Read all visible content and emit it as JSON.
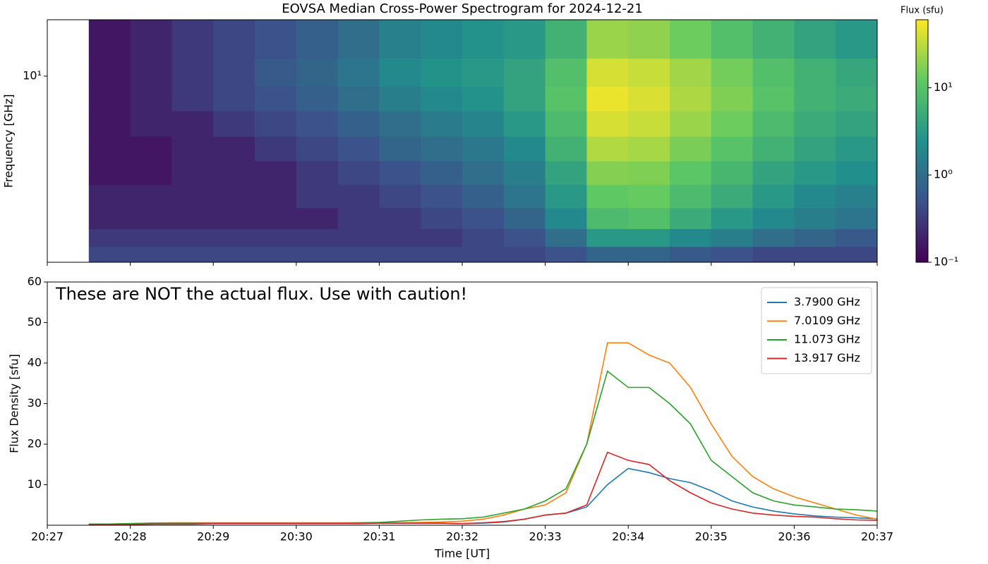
{
  "chart_data": [
    {
      "type": "heatmap",
      "title": "EOVSA Median Cross-Power Spectrogram for 2024-12-21",
      "y_label": "Frequency [GHz]",
      "yscale": "log",
      "xlim": [
        1227,
        1237
      ],
      "xticks": [
        1227,
        1228,
        1229,
        1230,
        1231,
        1232,
        1233,
        1234,
        1235,
        1236,
        1237
      ],
      "ylim": [
        1.49,
        17.8
      ],
      "yticks": [
        {
          "value": 10,
          "label": "10¹"
        }
      ],
      "x_bins": [
        1227.5,
        1228,
        1228.5,
        1229,
        1229.5,
        1230,
        1230.5,
        1231,
        1231.5,
        1232,
        1232.5,
        1233,
        1233.5,
        1234,
        1234.5,
        1235,
        1235.5,
        1236,
        1236.5,
        1237
      ],
      "y_bins": [
        1.49,
        1.75,
        2.1,
        2.6,
        3.3,
        4.2,
        5.4,
        7,
        9,
        12,
        17.8
      ],
      "values": [
        [
          0.4,
          0.4,
          0.4,
          0.4,
          0.4,
          0.4,
          0.4,
          0.4,
          0.4,
          0.4,
          0.4,
          0.5,
          0.8,
          0.8,
          0.6,
          0.5,
          0.4,
          0.4,
          0.4
        ],
        [
          0.3,
          0.3,
          0.3,
          0.3,
          0.3,
          0.3,
          0.3,
          0.3,
          0.3,
          0.4,
          0.5,
          1,
          3,
          3,
          2,
          1.5,
          1,
          0.8,
          0.6
        ],
        [
          0.2,
          0.2,
          0.2,
          0.2,
          0.2,
          0.2,
          0.3,
          0.3,
          0.4,
          0.5,
          0.8,
          2,
          8,
          9,
          5,
          3,
          2,
          1.5,
          1.2
        ],
        [
          0.2,
          0.2,
          0.2,
          0.2,
          0.2,
          0.3,
          0.3,
          0.4,
          0.5,
          0.7,
          1.2,
          3,
          12,
          13,
          8,
          5,
          3,
          2,
          1.6
        ],
        [
          0.15,
          0.15,
          0.2,
          0.2,
          0.2,
          0.3,
          0.4,
          0.5,
          0.7,
          1,
          1.5,
          4,
          18,
          17,
          11,
          7,
          4,
          3,
          2.4
        ],
        [
          0.15,
          0.15,
          0.2,
          0.2,
          0.3,
          0.4,
          0.5,
          0.8,
          1,
          1.3,
          2,
          6,
          28,
          25,
          16,
          10,
          6,
          4,
          3
        ],
        [
          0.15,
          0.2,
          0.2,
          0.3,
          0.4,
          0.5,
          0.7,
          1,
          1.4,
          1.8,
          3,
          8,
          40,
          35,
          22,
          14,
          8,
          5,
          4
        ],
        [
          0.15,
          0.2,
          0.3,
          0.4,
          0.5,
          0.7,
          1,
          1.5,
          2,
          2.5,
          4,
          10,
          50,
          42,
          27,
          17,
          10,
          6,
          5
        ],
        [
          0.15,
          0.2,
          0.3,
          0.4,
          0.6,
          0.8,
          1.2,
          2,
          2.6,
          3,
          4,
          9,
          40,
          35,
          24,
          15,
          9,
          6,
          4.5
        ],
        [
          0.15,
          0.2,
          0.3,
          0.4,
          0.5,
          0.7,
          1,
          1.6,
          2,
          2.5,
          3,
          6,
          22,
          20,
          14,
          9,
          6,
          4,
          3
        ]
      ],
      "colorbar": {
        "label": "Flux (sfu)",
        "colormap": "viridis",
        "log": true,
        "lim": [
          0.1,
          60
        ],
        "ticks": [
          {
            "value": 0.1,
            "label": "10⁻¹"
          },
          {
            "value": 1,
            "label": "10⁰"
          },
          {
            "value": 10,
            "label": "10¹"
          }
        ]
      }
    },
    {
      "type": "line",
      "annotation": "These are NOT the actual flux. Use with caution!",
      "x_label": "Time [UT]",
      "y_label": "Flux Density [sfu]",
      "xlim": [
        1227,
        1237
      ],
      "xticks": [
        {
          "value": 1227,
          "label": "20:27"
        },
        {
          "value": 1228,
          "label": "20:28"
        },
        {
          "value": 1229,
          "label": "20:29"
        },
        {
          "value": 1230,
          "label": "20:30"
        },
        {
          "value": 1231,
          "label": "20:31"
        },
        {
          "value": 1232,
          "label": "20:32"
        },
        {
          "value": 1233,
          "label": "20:33"
        },
        {
          "value": 1234,
          "label": "20:34"
        },
        {
          "value": 1235,
          "label": "20:35"
        },
        {
          "value": 1236,
          "label": "20:36"
        },
        {
          "value": 1237,
          "label": "20:37"
        }
      ],
      "ylim": [
        0,
        60
      ],
      "yticks": [
        10,
        20,
        30,
        40,
        50,
        60
      ],
      "legend": "upper right",
      "x": [
        1227.5,
        1227.75,
        1228,
        1228.25,
        1228.5,
        1228.75,
        1229,
        1229.25,
        1229.5,
        1229.75,
        1230,
        1230.25,
        1230.5,
        1230.75,
        1231,
        1231.25,
        1231.5,
        1231.75,
        1232,
        1232.25,
        1232.5,
        1232.75,
        1233,
        1233.25,
        1233.5,
        1233.75,
        1234,
        1234.25,
        1234.5,
        1234.75,
        1235,
        1235.25,
        1235.5,
        1235.75,
        1236,
        1236.25,
        1236.5,
        1236.75,
        1237
      ],
      "series": [
        {
          "name": "3.7900 GHz",
          "color": "#1f77b4",
          "values": [
            0.2,
            0.2,
            0.3,
            0.3,
            0.4,
            0.4,
            0.5,
            0.5,
            0.5,
            0.5,
            0.5,
            0.5,
            0.5,
            0.5,
            0.5,
            0.5,
            0.5,
            0.5,
            0.4,
            0.5,
            0.8,
            1.5,
            2.5,
            3,
            4.5,
            10,
            14,
            13,
            11.5,
            10.5,
            8.5,
            6,
            4.5,
            3.5,
            2.8,
            2.3,
            2,
            1.8,
            1.6
          ]
        },
        {
          "name": "7.0109 GHz",
          "color": "#ff7f0e",
          "values": [
            0.3,
            0.3,
            0.4,
            0.5,
            0.6,
            0.6,
            0.6,
            0.6,
            0.6,
            0.6,
            0.6,
            0.6,
            0.6,
            0.6,
            0.6,
            0.6,
            0.7,
            0.8,
            1,
            1.5,
            2.5,
            4,
            5,
            8,
            20,
            45,
            45,
            42,
            40,
            34,
            25,
            17,
            12,
            9,
            7,
            5.5,
            4,
            2.5,
            1.5
          ]
        },
        {
          "name": "11.073 GHz",
          "color": "#2ca02c",
          "values": [
            0.3,
            0.3,
            0.4,
            0.5,
            0.5,
            0.5,
            0.5,
            0.5,
            0.5,
            0.5,
            0.5,
            0.5,
            0.5,
            0.6,
            0.7,
            1,
            1.3,
            1.5,
            1.6,
            2,
            3,
            4,
            6,
            9,
            20,
            38,
            34,
            34,
            30,
            25,
            16,
            12,
            8,
            6,
            5,
            4.5,
            4,
            3.8,
            3.5
          ]
        },
        {
          "name": "13.917 GHz",
          "color": "#d62728",
          "values": [
            0.2,
            0.2,
            0.2,
            0.3,
            0.3,
            0.3,
            0.4,
            0.4,
            0.4,
            0.4,
            0.4,
            0.4,
            0.4,
            0.4,
            0.5,
            0.5,
            0.5,
            0.5,
            0.4,
            0.6,
            0.9,
            1.5,
            2.5,
            3,
            5,
            18,
            16,
            15,
            11,
            8,
            5.5,
            4,
            3,
            2.5,
            2.2,
            2,
            1.6,
            1.3,
            1.2
          ]
        }
      ]
    }
  ]
}
